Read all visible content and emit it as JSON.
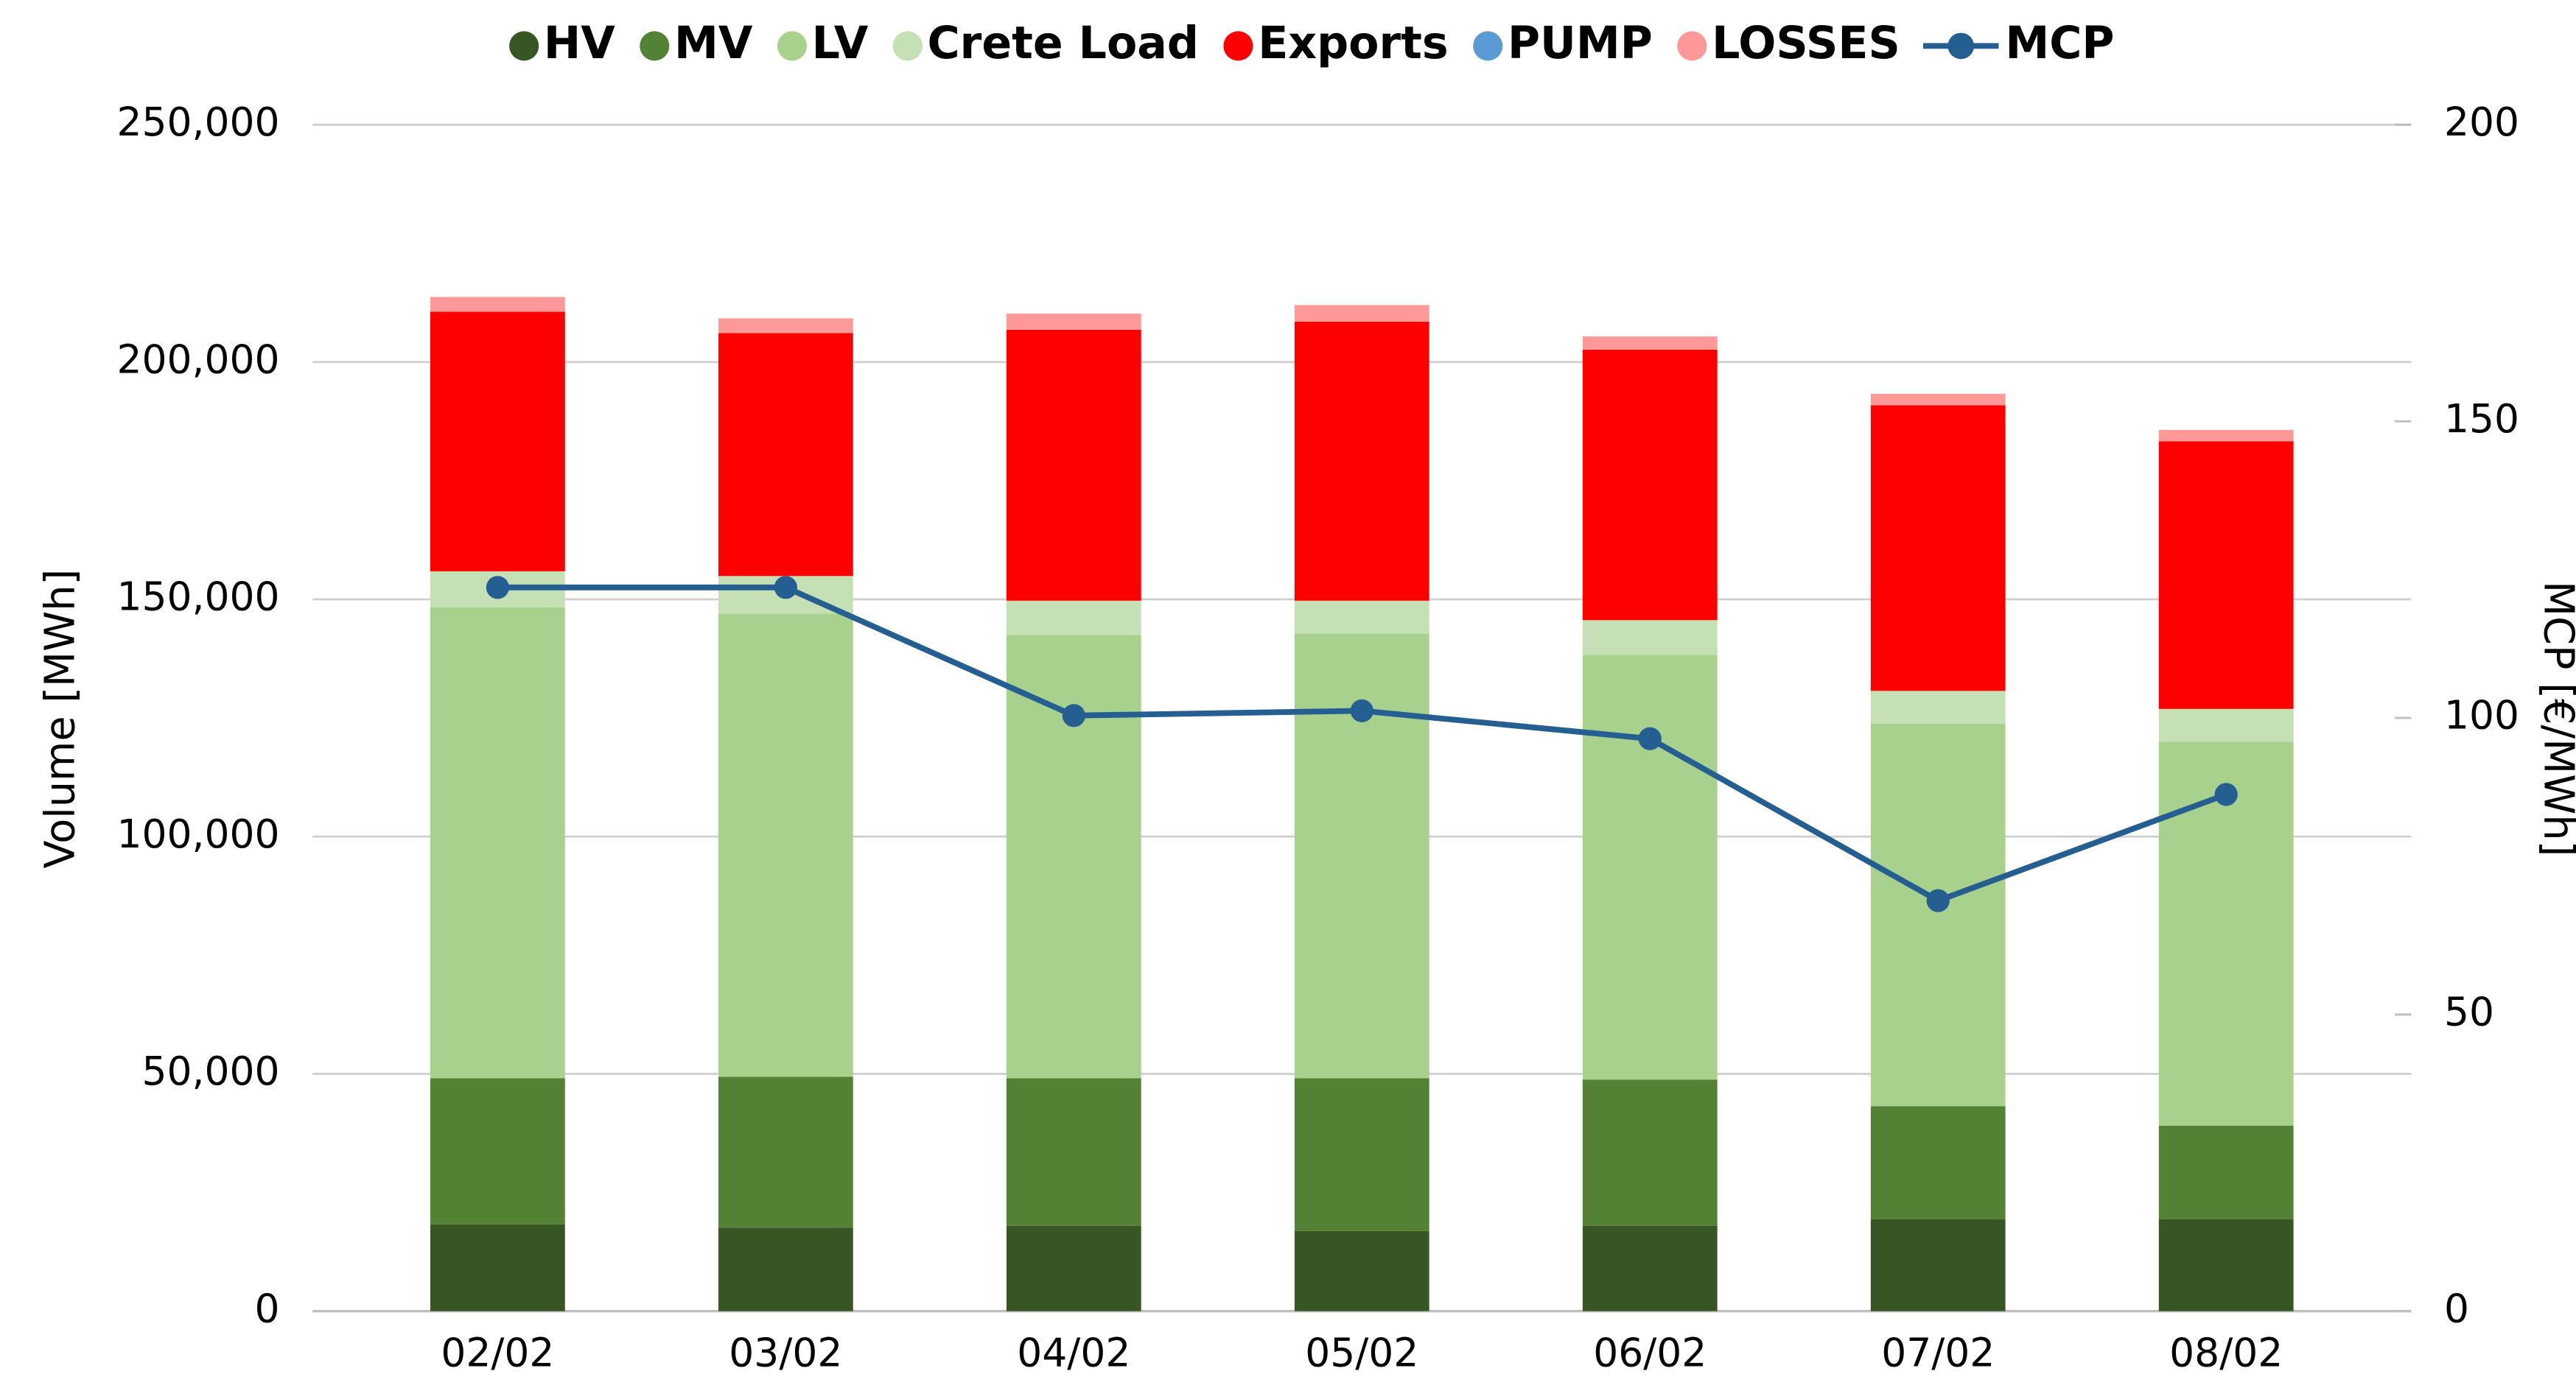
{
  "chart_data": {
    "type": "bar",
    "stacked": true,
    "categories": [
      "02/02",
      "03/02",
      "04/02",
      "05/02",
      "06/02",
      "07/02",
      "08/02"
    ],
    "series": [
      {
        "name": "HV",
        "color": "#375623",
        "values": [
          18300,
          17600,
          18000,
          16900,
          18000,
          19400,
          19400
        ]
      },
      {
        "name": "MV",
        "color": "#548235",
        "values": [
          30800,
          31800,
          31100,
          32200,
          30800,
          23800,
          19700
        ]
      },
      {
        "name": "LV",
        "color": "#a9d18e",
        "values": [
          99200,
          97600,
          93400,
          93700,
          89500,
          80600,
          80900
        ]
      },
      {
        "name": "Crete Load",
        "color": "#c5e0b4",
        "values": [
          7600,
          7900,
          7200,
          6900,
          7300,
          6900,
          6900
        ]
      },
      {
        "name": "Exports",
        "color": "#ff0000",
        "values": [
          54700,
          51200,
          57100,
          58800,
          57000,
          60200,
          56400
        ]
      },
      {
        "name": "PUMP",
        "color": "#5b9bd5",
        "values": [
          0,
          0,
          0,
          0,
          0,
          0,
          0
        ]
      },
      {
        "name": "LOSSES",
        "color": "#ff9999",
        "values": [
          3100,
          3100,
          3400,
          3500,
          2800,
          2400,
          2400
        ]
      },
      {
        "name": "MCP",
        "color": "#255e91",
        "type": "line",
        "axis": "y2",
        "values": [
          122,
          122,
          100.4,
          101.2,
          96.5,
          69.2,
          87.1
        ]
      }
    ],
    "ylabel": "Volume [MWh]",
    "y2label": "MCP [€/MWh]",
    "ylim": [
      0,
      250000
    ],
    "yticks": [
      0,
      {
        "value": 50000,
        "label": "50,000"
      },
      {
        "value": 100000,
        "label": "100,000"
      },
      {
        "value": 150000,
        "label": "150,000"
      },
      {
        "value": 200000,
        "label": "200,000"
      },
      {
        "value": 250000,
        "label": "250,000"
      }
    ],
    "y2lim": [
      0,
      200
    ],
    "y2ticks": [
      0,
      50,
      100,
      150,
      200
    ],
    "grid": true,
    "legend": "top"
  }
}
